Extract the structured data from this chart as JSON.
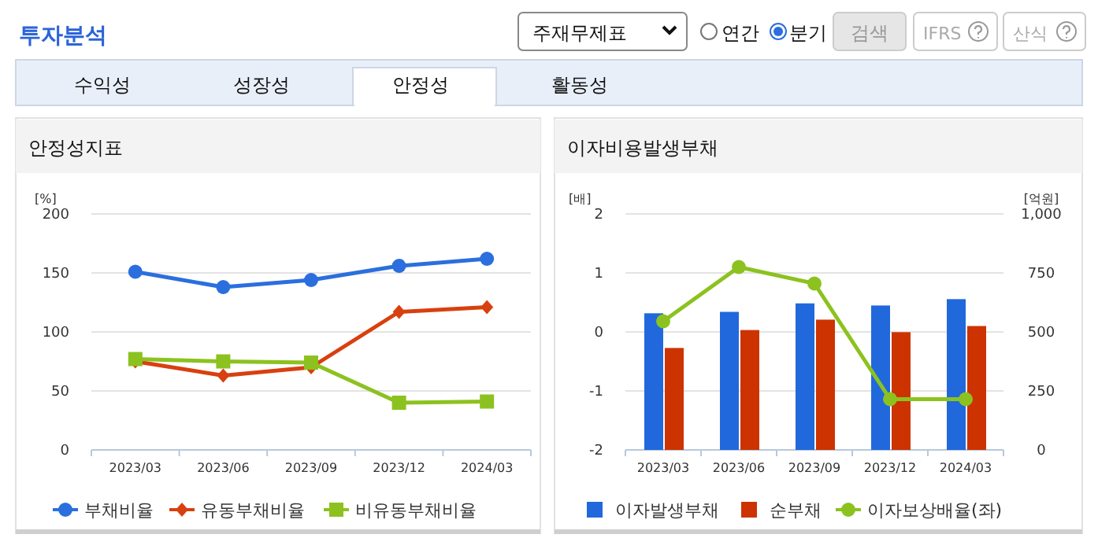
{
  "chart_data": [
    {
      "type": "other",
      "title": "투자분석",
      "annotations": [
        "주재무제표",
        "연간",
        "분기",
        "검색",
        "IFRS",
        "산식",
        "수익성",
        "성장성",
        "안정성",
        "활동성"
      ]
    },
    {
      "type": "line",
      "title": "안정성지표",
      "ylabel": "[%]",
      "categories": [
        "2023/03",
        "2023/06",
        "2023/09",
        "2023/12",
        "2024/03"
      ],
      "ylim": [
        0,
        200
      ],
      "yticks": [
        0,
        50,
        100,
        150,
        200
      ],
      "grid": "y",
      "legend": "bottom",
      "series": [
        {
          "name": "부채비율",
          "color": "#2b6fde",
          "marker": "circle",
          "values": [
            151,
            138,
            144,
            156,
            162
          ]
        },
        {
          "name": "유동부채비율",
          "color": "#d8400f",
          "marker": "diamond",
          "values": [
            75,
            63,
            70,
            117,
            121
          ]
        },
        {
          "name": "비유동부채비율",
          "color": "#8cc21f",
          "marker": "square",
          "values": [
            77,
            75,
            74,
            40,
            41
          ]
        }
      ]
    },
    {
      "type": "bar",
      "title": "이자비용발생부채",
      "ylabel": "[배]",
      "y2label": "[억원]",
      "categories": [
        "2023/03",
        "2023/06",
        "2023/09",
        "2023/12",
        "2024/03"
      ],
      "ylim": [
        -2,
        2
      ],
      "yticks": [
        -2,
        -1,
        0,
        1,
        2
      ],
      "y2lim": [
        0,
        1000
      ],
      "y2ticks": [
        0,
        250,
        500,
        750,
        {
          "value": 1000,
          "label": "1,000"
        }
      ],
      "grid": "y",
      "legend": "bottom",
      "series": [
        {
          "name": "이자발생부채",
          "color": "#2168dc",
          "axis": "y2",
          "values": [
            579,
            585,
            621,
            612,
            639
          ]
        },
        {
          "name": "순부채",
          "color": "#cc3300",
          "axis": "y2",
          "values": [
            432,
            508,
            552,
            499,
            525
          ]
        },
        {
          "type": "line",
          "name": "이자보상배율(좌)",
          "color": "#8cc21f",
          "marker": "circle",
          "values": [
            0.18,
            1.1,
            0.82,
            -1.14,
            -1.14
          ]
        }
      ]
    }
  ]
}
